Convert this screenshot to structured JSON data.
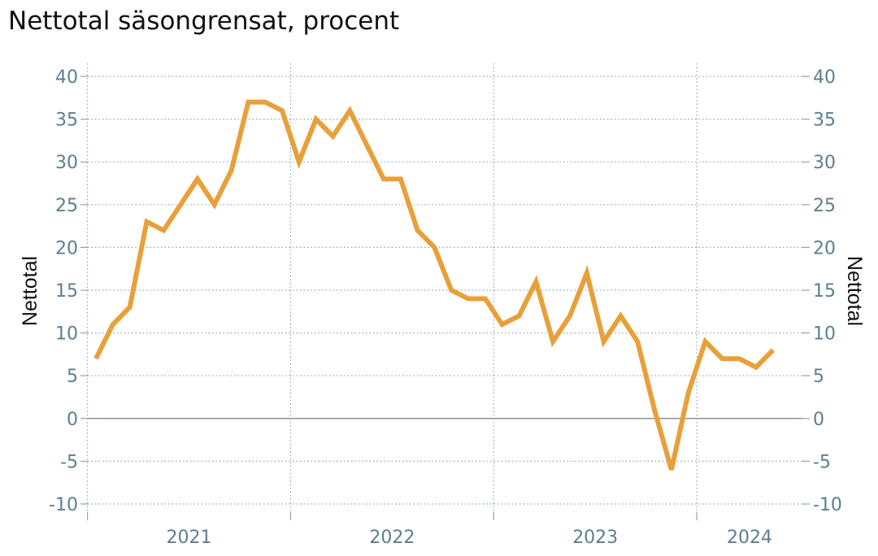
{
  "chart_data": {
    "type": "line",
    "title": "Nettotal säsongrensat, procent",
    "ylabel_left": "Nettotal",
    "ylabel_right": "Nettotal",
    "ylim": [
      -10,
      40
    ],
    "yticks": [
      "40",
      "35",
      "30",
      "25",
      "20",
      "15",
      "10",
      "5",
      "0",
      "-5",
      "-10"
    ],
    "ytick_values": [
      40,
      35,
      30,
      25,
      20,
      15,
      10,
      5,
      0,
      -5,
      -10
    ],
    "x_start": "2021-01",
    "x_end": "2024-06",
    "year_labels": [
      "2021",
      "2022",
      "2023",
      "2024"
    ],
    "grid": true,
    "series": [
      {
        "color": "#E8A03A",
        "points": [
          [
            "2021-01",
            7
          ],
          [
            "2021-02",
            11
          ],
          [
            "2021-03",
            13
          ],
          [
            "2021-04",
            23
          ],
          [
            "2021-05",
            22
          ],
          [
            "2021-06",
            25
          ],
          [
            "2021-07",
            28
          ],
          [
            "2021-08",
            25
          ],
          [
            "2021-09",
            29
          ],
          [
            "2021-10",
            37
          ],
          [
            "2021-11",
            37
          ],
          [
            "2021-12",
            36
          ],
          [
            "2022-01",
            30
          ],
          [
            "2022-02",
            35
          ],
          [
            "2022-03",
            33
          ],
          [
            "2022-04",
            36
          ],
          [
            "2022-05",
            32
          ],
          [
            "2022-06",
            28
          ],
          [
            "2022-07",
            28
          ],
          [
            "2022-08",
            22
          ],
          [
            "2022-09",
            20
          ],
          [
            "2022-10",
            15
          ],
          [
            "2022-11",
            14
          ],
          [
            "2022-12",
            14
          ],
          [
            "2023-01",
            11
          ],
          [
            "2023-02",
            12
          ],
          [
            "2023-03",
            16
          ],
          [
            "2023-04",
            9
          ],
          [
            "2023-05",
            12
          ],
          [
            "2023-06",
            17
          ],
          [
            "2023-07",
            9
          ],
          [
            "2023-08",
            12
          ],
          [
            "2023-09",
            9
          ],
          [
            "2023-10",
            1
          ],
          [
            "2023-11",
            -6
          ],
          [
            "2023-12",
            3
          ],
          [
            "2024-01",
            9
          ],
          [
            "2024-02",
            7
          ],
          [
            "2024-03",
            7
          ],
          [
            "2024-04",
            6
          ],
          [
            "2024-05",
            8
          ]
        ]
      }
    ]
  },
  "colors": {
    "line": "#E8A03A",
    "tick_text": "#5c7f8c",
    "grid": "#8aa7b3",
    "zero_line": "#888888"
  }
}
